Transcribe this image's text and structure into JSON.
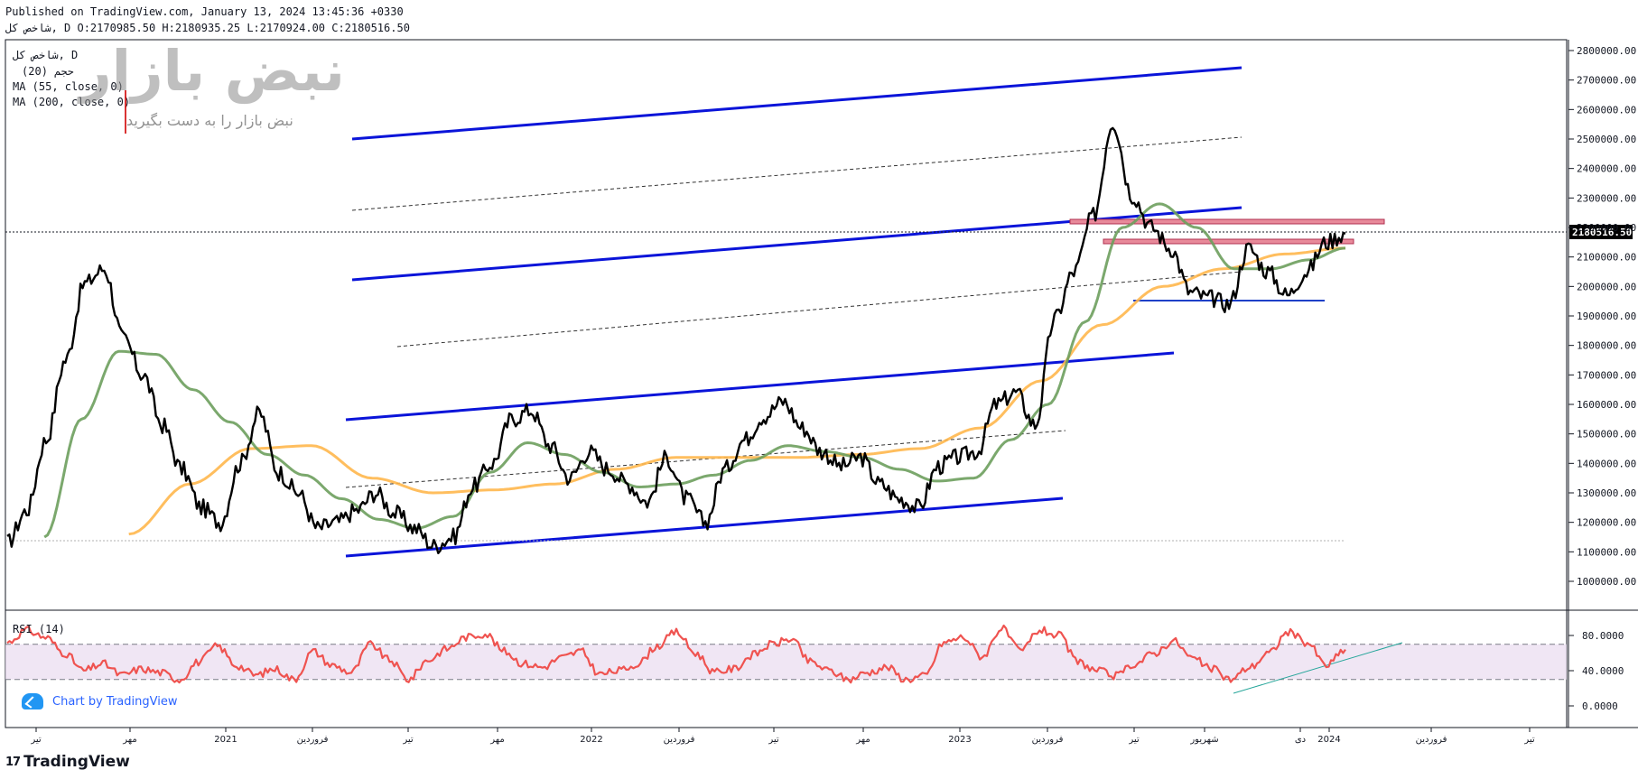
{
  "header": {
    "published": "Published on TradingView.com, January 13, 2024 13:45:36 +0330",
    "ohlc_line": "شاخص کل, D O:2170985.50 H:2180935.25 L:2170924.00 C:2180516.50"
  },
  "legend": {
    "symbol": "شاخص کل, D",
    "volume": "حجم (20)",
    "ma55": "MA (55, close, 0)",
    "ma200": "MA (200, close, 0)"
  },
  "watermark": {
    "brand": "نبض بازار",
    "slogan": "نبض بازار را به دست بگیرید"
  },
  "rsi_label": "RSI (14)",
  "badge_label": "Chart by TradingView",
  "footer_brand": "TradingView",
  "footer_mark": "17",
  "colors": {
    "price": "#000000",
    "ma55": "#6d9e5d",
    "ma200": "#ffb74d",
    "channel": "#0a14d9",
    "resistance_zone": "#e88a9a",
    "support_line": "#1e40c8",
    "rsi": "#ef5350",
    "rsi_band": "#e9dcef",
    "rsi_trend": "#26a69a",
    "last_price_tag": "#000000"
  },
  "chart_data": [
    {
      "type": "line",
      "panel": "price",
      "y_axis_ticks": [
        "2800000.00",
        "2700000.00",
        "2600000.00",
        "2500000.00",
        "2400000.00",
        "2300000.00",
        "2200000.00",
        "2100000.00",
        "2000000.00",
        "1900000.00",
        "1800000.00",
        "1700000.00",
        "1600000.00",
        "1500000.00",
        "1400000.00",
        "1300000.00",
        "1200000.00",
        "1100000.00",
        "1000000.00"
      ],
      "ylim": [
        920000,
        2850000
      ],
      "x_axis_ticks": [
        "تیر",
        "مهر",
        "2021",
        "فروردین",
        "تیر",
        "مهر",
        "2022",
        "فروردین",
        "تیر",
        "مهر",
        "2023",
        "فروردین",
        "تیر",
        "شهریور",
        "دی",
        "2024",
        "فروردین",
        "تیر"
      ],
      "last_price_label": "2180516.50",
      "series": [
        {
          "name": "شاخص کل",
          "values": [
            1130000,
            1240000,
            1480000,
            1750000,
            2010000,
            2060000,
            1820000,
            1700000,
            1530000,
            1380000,
            1250000,
            1200000,
            1400000,
            1570000,
            1370000,
            1300000,
            1180000,
            1200000,
            1240000,
            1300000,
            1230000,
            1180000,
            1120000,
            1150000,
            1320000,
            1400000,
            1550000,
            1580000,
            1460000,
            1350000,
            1440000,
            1380000,
            1330000,
            1270000,
            1420000,
            1280000,
            1200000,
            1380000,
            1480000,
            1560000,
            1610000,
            1520000,
            1440000,
            1390000,
            1420000,
            1330000,
            1280000,
            1250000,
            1390000,
            1420000,
            1440000,
            1600000,
            1640000,
            1530000,
            1890000,
            2050000,
            2240000,
            2560000,
            2310000,
            2200000,
            2130000,
            1980000,
            1960000,
            1940000,
            2130000,
            2050000,
            1970000,
            2050000,
            2150000,
            2180000
          ],
          "x_start": "2020-06-22",
          "x_end": "2024-01-13"
        },
        {
          "name": "MA (55, close, 0)",
          "values": [
            null,
            1150000,
            1550000,
            1780000,
            1770000,
            1650000,
            1540000,
            1430000,
            1360000,
            1280000,
            1210000,
            1180000,
            1220000,
            1370000,
            1470000,
            1430000,
            1370000,
            1320000,
            1330000,
            1360000,
            1410000,
            1460000,
            1440000,
            1420000,
            1380000,
            1340000,
            1350000,
            1480000,
            1600000,
            1880000,
            2200000,
            2280000,
            2200000,
            2060000,
            2060000,
            2090000,
            2130000
          ],
          "x_start": "2020-06-22",
          "x_end": "2024-01-13"
        },
        {
          "name": "MA (200, close, 0)",
          "values": [
            null,
            null,
            1160000,
            1330000,
            1450000,
            1460000,
            1350000,
            1300000,
            1310000,
            1330000,
            1380000,
            1420000,
            1420000,
            1420000,
            1430000,
            1450000,
            1520000,
            1680000,
            1870000,
            2000000,
            2060000,
            2110000,
            2130000
          ],
          "x_start": "2020-06-22",
          "x_end": "2024-01-13"
        }
      ]
    },
    {
      "type": "line",
      "panel": "rsi",
      "y_axis_ticks": [
        "80.0000",
        "40.0000",
        "0.0000"
      ],
      "ylim": [
        -10,
        95
      ],
      "bands": [
        30,
        70
      ],
      "series": [
        {
          "name": "RSI (14)",
          "values": [
            72,
            86,
            78,
            60,
            40,
            48,
            35,
            42,
            38,
            30,
            50,
            68,
            46,
            35,
            42,
            30,
            62,
            46,
            38,
            70,
            52,
            30,
            52,
            65,
            78,
            82,
            62,
            48,
            44,
            55,
            62,
            36,
            40,
            48,
            68,
            84,
            60,
            38,
            42,
            58,
            70,
            76,
            50,
            40,
            30,
            38,
            44,
            30,
            34,
            72,
            78,
            56,
            88,
            62,
            86,
            80,
            50,
            40,
            34,
            48,
            60,
            74,
            54,
            42,
            30,
            44,
            60,
            84,
            72,
            46,
            64
          ],
          "x_start": "2020-06-22",
          "x_end": "2024-01-13"
        }
      ]
    }
  ]
}
